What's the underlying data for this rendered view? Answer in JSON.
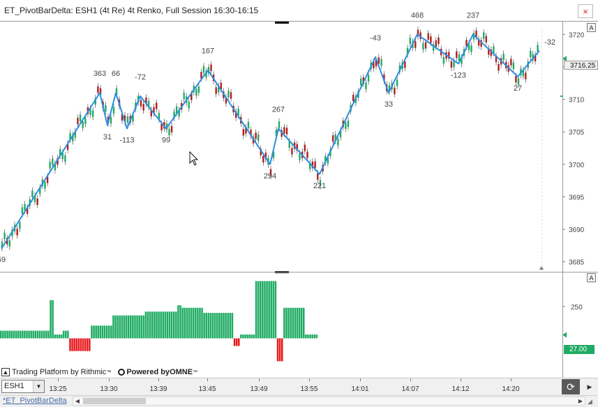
{
  "window": {
    "title": "ET_PivotBarDelta: ESH1 (4t Re) 4t Renko, Full Session 16:30-16:15",
    "close_glyph": "×"
  },
  "price_panel": {
    "y_ticks": [
      "3720",
      "3715",
      "3710",
      "3705",
      "3700",
      "3695",
      "3690",
      "3685"
    ],
    "current_price": "3716.25",
    "autoscale_label": "A",
    "pivot_labels": [
      {
        "text": "363"
      },
      {
        "text": "66"
      },
      {
        "text": "-72"
      },
      {
        "text": "167"
      },
      {
        "text": "31"
      },
      {
        "text": "-113"
      },
      {
        "text": "99"
      },
      {
        "text": "267"
      },
      {
        "text": "294"
      },
      {
        "text": "221"
      },
      {
        "text": "-43"
      },
      {
        "text": "33"
      },
      {
        "text": "468"
      },
      {
        "text": "237"
      },
      {
        "text": "-123"
      },
      {
        "text": "-32"
      },
      {
        "text": "27"
      },
      {
        "text": "59"
      }
    ]
  },
  "delta_panel": {
    "y_tick": "250",
    "current_value": "27.00",
    "autoscale_label": "A",
    "positive_color": "#1fab63",
    "negative_color": "#e8191d"
  },
  "chart_data": {
    "type": "mixed",
    "price_axis": {
      "ylim": [
        3684,
        3721
      ],
      "ticks": [
        3685,
        3690,
        3695,
        3700,
        3705,
        3710,
        3715,
        3720
      ]
    },
    "zigzag_pivots": [
      3687,
      3711,
      3706,
      3711,
      3705.5,
      3710.5,
      3705.5,
      3714.5,
      3700,
      3705.5,
      3698.5,
      3716.5,
      3711,
      3720,
      3715.5,
      3720,
      3713.5,
      3717.5
    ],
    "zigzag_labels": [
      "59",
      "363",
      "31",
      "66",
      "-113",
      "-72",
      "99",
      "167",
      "294",
      "267",
      "221",
      "-43",
      "33",
      "468",
      "-123",
      "237",
      "27",
      "-32"
    ],
    "delta_histogram": [
      {
        "value": 60,
        "bars": 23
      },
      {
        "value": 300,
        "bars": 2
      },
      {
        "value": 30,
        "bars": 4
      },
      {
        "value": 60,
        "bars": 3
      },
      {
        "value": -100,
        "bars": 10
      },
      {
        "value": 100,
        "bars": 10
      },
      {
        "value": 180,
        "bars": 15
      },
      {
        "value": 210,
        "bars": 15
      },
      {
        "value": 260,
        "bars": 2
      },
      {
        "value": 240,
        "bars": 10
      },
      {
        "value": 200,
        "bars": 14
      },
      {
        "value": -60,
        "bars": 3
      },
      {
        "value": 30,
        "bars": 7
      },
      {
        "value": 450,
        "bars": 10
      },
      {
        "value": -180,
        "bars": 3
      },
      {
        "value": 240,
        "bars": 10
      },
      {
        "value": 30,
        "bars": 6
      }
    ],
    "delta_axis": {
      "ylim": [
        -200,
        490
      ],
      "ticks": [
        250
      ]
    },
    "current_delta": 27
  },
  "time_axis": {
    "labels": [
      "13:25",
      "13:30",
      "13:39",
      "13:45",
      "13:49",
      "13:55",
      "14:01",
      "14:07",
      "14:12",
      "14:20"
    ]
  },
  "watermark": {
    "rithmic": "Trading Platform by Rithmic",
    "tm": "™",
    "omne_prefix": "Powered by ",
    "omne": "OMNE",
    "omne_tm": "™"
  },
  "bottom": {
    "symbol": "ESH1",
    "tab_label": "*ET_PivotBarDelta"
  },
  "colors": {
    "up_candle": "#1fab63",
    "down_candle": "#b01e1e",
    "zigzag": "#2a8fe0",
    "grid_axis": "#c8c8c8"
  }
}
